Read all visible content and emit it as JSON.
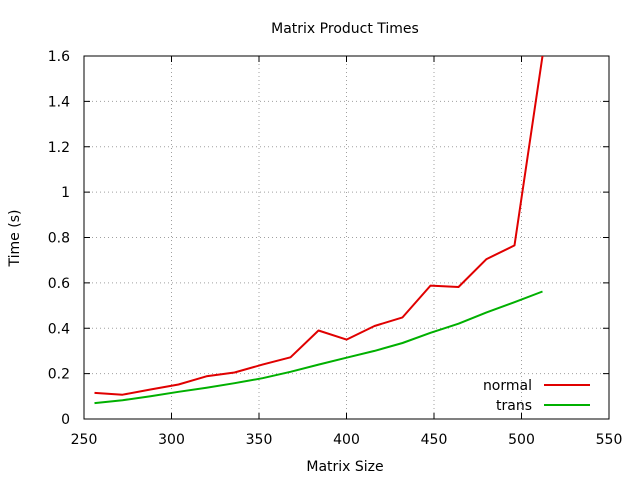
{
  "chart_data": {
    "type": "line",
    "title": "Matrix Product Times",
    "xlabel": "Matrix Size",
    "ylabel": "Time (s)",
    "xlim": [
      250,
      550
    ],
    "ylim": [
      0,
      1.6
    ],
    "xticks": [
      250,
      300,
      350,
      400,
      450,
      500,
      550
    ],
    "yticks": [
      0,
      0.2,
      0.4,
      0.6,
      0.8,
      1,
      1.2,
      1.4,
      1.6
    ],
    "grid": true,
    "legend_position": "bottom-right",
    "series": [
      {
        "name": "normal",
        "color": "#e00000",
        "x": [
          256,
          272,
          288,
          304,
          320,
          336,
          352,
          368,
          384,
          400,
          416,
          432,
          448,
          464,
          480,
          496,
          512
        ],
        "y": [
          0.115,
          0.107,
          0.13,
          0.152,
          0.188,
          0.205,
          0.24,
          0.272,
          0.39,
          0.35,
          0.41,
          0.448,
          0.588,
          0.582,
          0.705,
          0.765,
          1.6
        ]
      },
      {
        "name": "trans",
        "color": "#00b000",
        "x": [
          256,
          272,
          288,
          304,
          320,
          336,
          352,
          368,
          384,
          400,
          416,
          432,
          448,
          464,
          480,
          496,
          512
        ],
        "y": [
          0.07,
          0.083,
          0.1,
          0.12,
          0.138,
          0.158,
          0.18,
          0.208,
          0.24,
          0.27,
          0.3,
          0.335,
          0.38,
          0.42,
          0.47,
          0.515,
          0.562
        ]
      }
    ]
  }
}
